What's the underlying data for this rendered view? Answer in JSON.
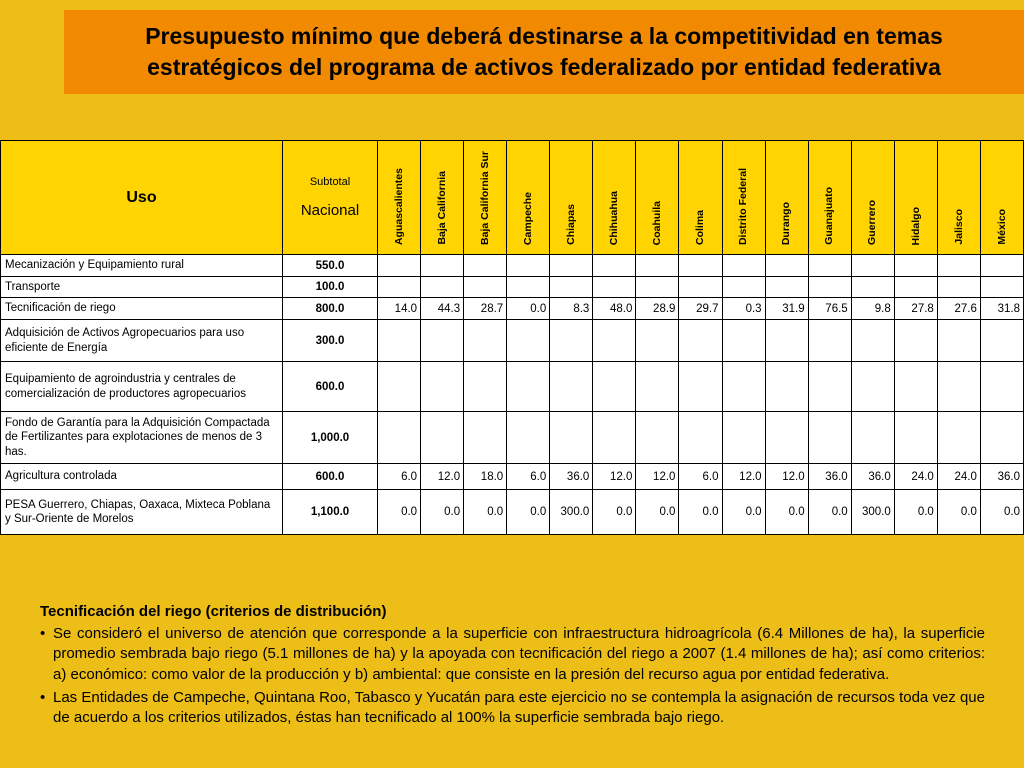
{
  "slide": {
    "title": "Presupuesto mínimo que deberá destinarse a la competitividad en temas estratégicos del programa de activos federalizado por entidad federativa"
  },
  "colors": {
    "background": "#EDBE17",
    "title_bar": "#F18A00",
    "table_header": "#FFD400",
    "table_body": "#FFFFFF",
    "border": "#000000"
  },
  "table": {
    "col_headers": {
      "uso": "Uso",
      "subtotal_line1": "Subtotal",
      "subtotal_line2": "Nacional"
    },
    "states": [
      "Aguascalientes",
      "Baja California",
      "Baja California Sur",
      "Campeche",
      "Chiapas",
      "Chihuahua",
      "Coahuila",
      "Colima",
      "Distrito Federal",
      "Durango",
      "Guanajuato",
      "Guerrero",
      "Hidalgo",
      "Jalisco",
      "México"
    ],
    "rows": [
      {
        "label": "Mecanización y Equipamiento rural",
        "subtotal": "550.0",
        "values": []
      },
      {
        "label": "Transporte",
        "subtotal": "100.0",
        "values": []
      },
      {
        "label": "Tecnificación de riego",
        "subtotal": "800.0",
        "values": [
          "14.0",
          "44.3",
          "28.7",
          "0.0",
          "8.3",
          "48.0",
          "28.9",
          "29.7",
          "0.3",
          "31.9",
          "76.5",
          "9.8",
          "27.8",
          "27.6",
          "31.8"
        ]
      },
      {
        "label": "Adquisición de Activos Agropecuarios para uso eficiente de Energía",
        "subtotal": "300.0",
        "values": []
      },
      {
        "label": "Equipamiento de agroindustria y centrales de comercialización de productores agropecuarios",
        "subtotal": "600.0",
        "values": []
      },
      {
        "label": "Fondo de Garantía para la Adquisición Compactada de Fertilizantes para explotaciones de menos de 3 has.",
        "subtotal": "1,000.0",
        "values": []
      },
      {
        "label": "Agricultura controlada",
        "subtotal": "600.0",
        "values": [
          "6.0",
          "12.0",
          "18.0",
          "6.0",
          "36.0",
          "12.0",
          "12.0",
          "6.0",
          "12.0",
          "12.0",
          "36.0",
          "36.0",
          "24.0",
          "24.0",
          "36.0"
        ]
      },
      {
        "label": "PESA Guerrero, Chiapas, Oaxaca, Mixteca Poblana y Sur-Oriente de Morelos",
        "subtotal": "1,100.0",
        "values": [
          "0.0",
          "0.0",
          "0.0",
          "0.0",
          "300.0",
          "0.0",
          "0.0",
          "0.0",
          "0.0",
          "0.0",
          "0.0",
          "300.0",
          "0.0",
          "0.0",
          "0.0"
        ]
      }
    ]
  },
  "notes": {
    "heading": "Tecnificación del riego (criterios de distribución)",
    "bullets": [
      "Se consideró el universo de atención que corresponde a la superficie con infraestructura hidroagrícola (6.4 Millones de ha), la superficie promedio sembrada bajo riego (5.1 millones de ha) y la apoyada con tecnificación del riego a 2007 (1.4 millones de ha); así como criterios: a) económico: como valor de la producción y b) ambiental: que consiste en la presión del recurso agua por entidad federativa.",
      "Las Entidades de Campeche, Quintana Roo, Tabasco y Yucatán para este ejercicio no se contempla la asignación de recursos toda vez que de acuerdo a los criterios utilizados, éstas han tecnificado al 100% la superficie sembrada bajo riego."
    ]
  }
}
